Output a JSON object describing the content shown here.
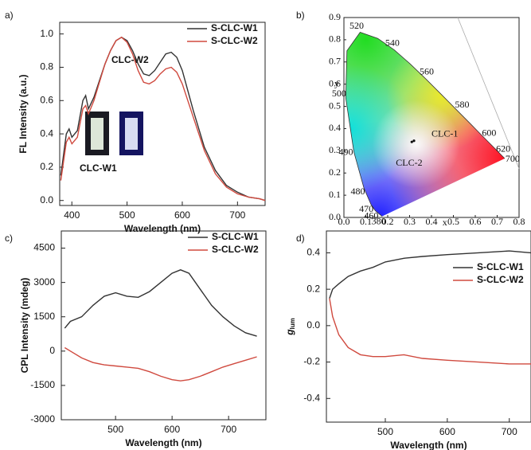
{
  "chart_data": [
    {
      "type": "line",
      "label": "a)",
      "xlabel": "Wavelength (nm)",
      "ylabel": "FL Intensity (a.u.)",
      "x": [
        380,
        390,
        395,
        400,
        410,
        420,
        425,
        430,
        440,
        450,
        460,
        470,
        480,
        490,
        500,
        510,
        520,
        530,
        540,
        550,
        560,
        570,
        580,
        590,
        600,
        610,
        620,
        640,
        660,
        680,
        700,
        720,
        740,
        750
      ],
      "series": [
        {
          "name": "S-CLC-W1",
          "color": "#333333",
          "values": [
            0.15,
            0.4,
            0.43,
            0.38,
            0.42,
            0.6,
            0.63,
            0.55,
            0.62,
            0.72,
            0.82,
            0.9,
            0.96,
            0.98,
            0.96,
            0.9,
            0.82,
            0.76,
            0.75,
            0.78,
            0.83,
            0.88,
            0.89,
            0.86,
            0.78,
            0.66,
            0.54,
            0.32,
            0.18,
            0.09,
            0.05,
            0.02,
            0.01,
            0.0
          ]
        },
        {
          "name": "S-CLC-W2",
          "color": "#d04a3f",
          "values": [
            0.12,
            0.35,
            0.38,
            0.34,
            0.38,
            0.55,
            0.57,
            0.52,
            0.6,
            0.71,
            0.82,
            0.9,
            0.96,
            0.98,
            0.95,
            0.88,
            0.78,
            0.71,
            0.7,
            0.72,
            0.76,
            0.79,
            0.8,
            0.77,
            0.7,
            0.6,
            0.5,
            0.3,
            0.16,
            0.08,
            0.04,
            0.02,
            0.01,
            0.0
          ]
        }
      ],
      "xlim": [
        378,
        750
      ],
      "ylim": [
        -0.03,
        1.07
      ],
      "xticks": [
        400,
        500,
        600,
        700
      ],
      "yticks": [
        {
          "value": 0,
          "label": "0.0"
        },
        {
          "value": 0.2,
          "label": "0.2"
        },
        {
          "value": 0.4,
          "label": "0.4"
        },
        {
          "value": 0.6,
          "label": "0.6"
        },
        {
          "value": 0.8,
          "label": "0.8"
        },
        {
          "value": 1,
          "label": "1.0"
        }
      ],
      "legend": "upper right",
      "annotations": [
        "CLC-W2",
        "CLC-W1"
      ]
    },
    {
      "type": "chromaticity",
      "label": "b)",
      "xlabel": "x",
      "ylabel": "y",
      "locus": {
        "labels": [
          "380",
          "460",
          "470",
          "480",
          "490",
          "500",
          null,
          "520",
          null,
          "540",
          null,
          "560",
          null,
          "580",
          null,
          "600",
          "620",
          "700"
        ],
        "x": [
          0.1741,
          0.144,
          0.1241,
          0.0913,
          0.0454,
          0.0082,
          0.0139,
          0.0743,
          0.1547,
          0.2296,
          0.3016,
          0.3731,
          0.4441,
          0.5125,
          0.5752,
          0.627,
          0.6915,
          0.7347
        ],
        "y": [
          0.005,
          0.0297,
          0.0578,
          0.1327,
          0.295,
          0.5384,
          0.7502,
          0.8338,
          0.8059,
          0.7543,
          0.6923,
          0.6245,
          0.5547,
          0.4866,
          0.4242,
          0.3725,
          0.3083,
          0.2653
        ]
      },
      "points": {
        "names": [
          "CLC-1",
          "CLC-2"
        ],
        "x": [
          0.32,
          0.31
        ],
        "y": [
          0.345,
          0.34
        ]
      },
      "xlim": [
        0,
        0.8
      ],
      "ylim": [
        0,
        0.9
      ],
      "xticks": [
        {
          "value": 0,
          "label": "0.0"
        },
        0.1,
        0.2,
        0.3,
        0.4,
        0.5,
        0.6,
        0.7,
        0.8
      ],
      "yticks": [
        {
          "value": 0,
          "label": "0.0"
        },
        0.1,
        0.2,
        0.3,
        0.4,
        0.5,
        0.6,
        0.7,
        0.8,
        0.9
      ]
    },
    {
      "type": "line",
      "label": "c)",
      "xlabel": "Wavelength (nm)",
      "ylabel": "CPL Intensity (mdeg)",
      "x": [
        410,
        420,
        440,
        460,
        480,
        500,
        520,
        540,
        560,
        580,
        600,
        615,
        630,
        650,
        670,
        690,
        710,
        730,
        750
      ],
      "series": [
        {
          "name": "S-CLC-W1",
          "color": "#333333",
          "values": [
            1000,
            1300,
            1500,
            2000,
            2400,
            2550,
            2400,
            2350,
            2600,
            3000,
            3400,
            3550,
            3400,
            2700,
            2000,
            1500,
            1100,
            800,
            650
          ]
        },
        {
          "name": "S-CLC-W2",
          "color": "#d04a3f",
          "values": [
            150,
            0,
            -300,
            -500,
            -600,
            -650,
            -700,
            -750,
            -900,
            -1100,
            -1250,
            -1300,
            -1250,
            -1100,
            -900,
            -700,
            -550,
            -400,
            -250
          ]
        }
      ],
      "xlim": [
        404,
        766
      ],
      "ylim": [
        -3000,
        5250
      ],
      "xticks": [
        500,
        600,
        700
      ],
      "yticks": [
        -3000,
        -1500,
        0,
        1500,
        3000,
        4500
      ],
      "legend": "upper right"
    },
    {
      "type": "line",
      "label": "d)",
      "xlabel": "Wavelength (nm)",
      "ylabel": "g",
      "ylabel_sub": "lum",
      "x": [
        410,
        415,
        425,
        440,
        460,
        480,
        500,
        530,
        560,
        600,
        650,
        700,
        735
      ],
      "series": [
        {
          "name": "S-CLC-W1",
          "color": "#333333",
          "values": [
            0.15,
            0.2,
            0.23,
            0.27,
            0.3,
            0.32,
            0.35,
            0.37,
            0.38,
            0.39,
            0.4,
            0.41,
            0.4
          ]
        },
        {
          "name": "S-CLC-W2",
          "color": "#d04a3f",
          "values": [
            0.15,
            0.05,
            -0.05,
            -0.12,
            -0.16,
            -0.17,
            -0.17,
            -0.16,
            -0.18,
            -0.19,
            -0.2,
            -0.21,
            -0.21
          ]
        }
      ],
      "xlim": [
        405,
        735
      ],
      "ylim": [
        -0.53,
        0.52
      ],
      "xticks": [
        500,
        600,
        700
      ],
      "yticks": [
        -0.4,
        -0.2,
        {
          "value": 0,
          "label": "0.0"
        },
        0.2,
        0.4
      ],
      "legend": "center right"
    }
  ]
}
